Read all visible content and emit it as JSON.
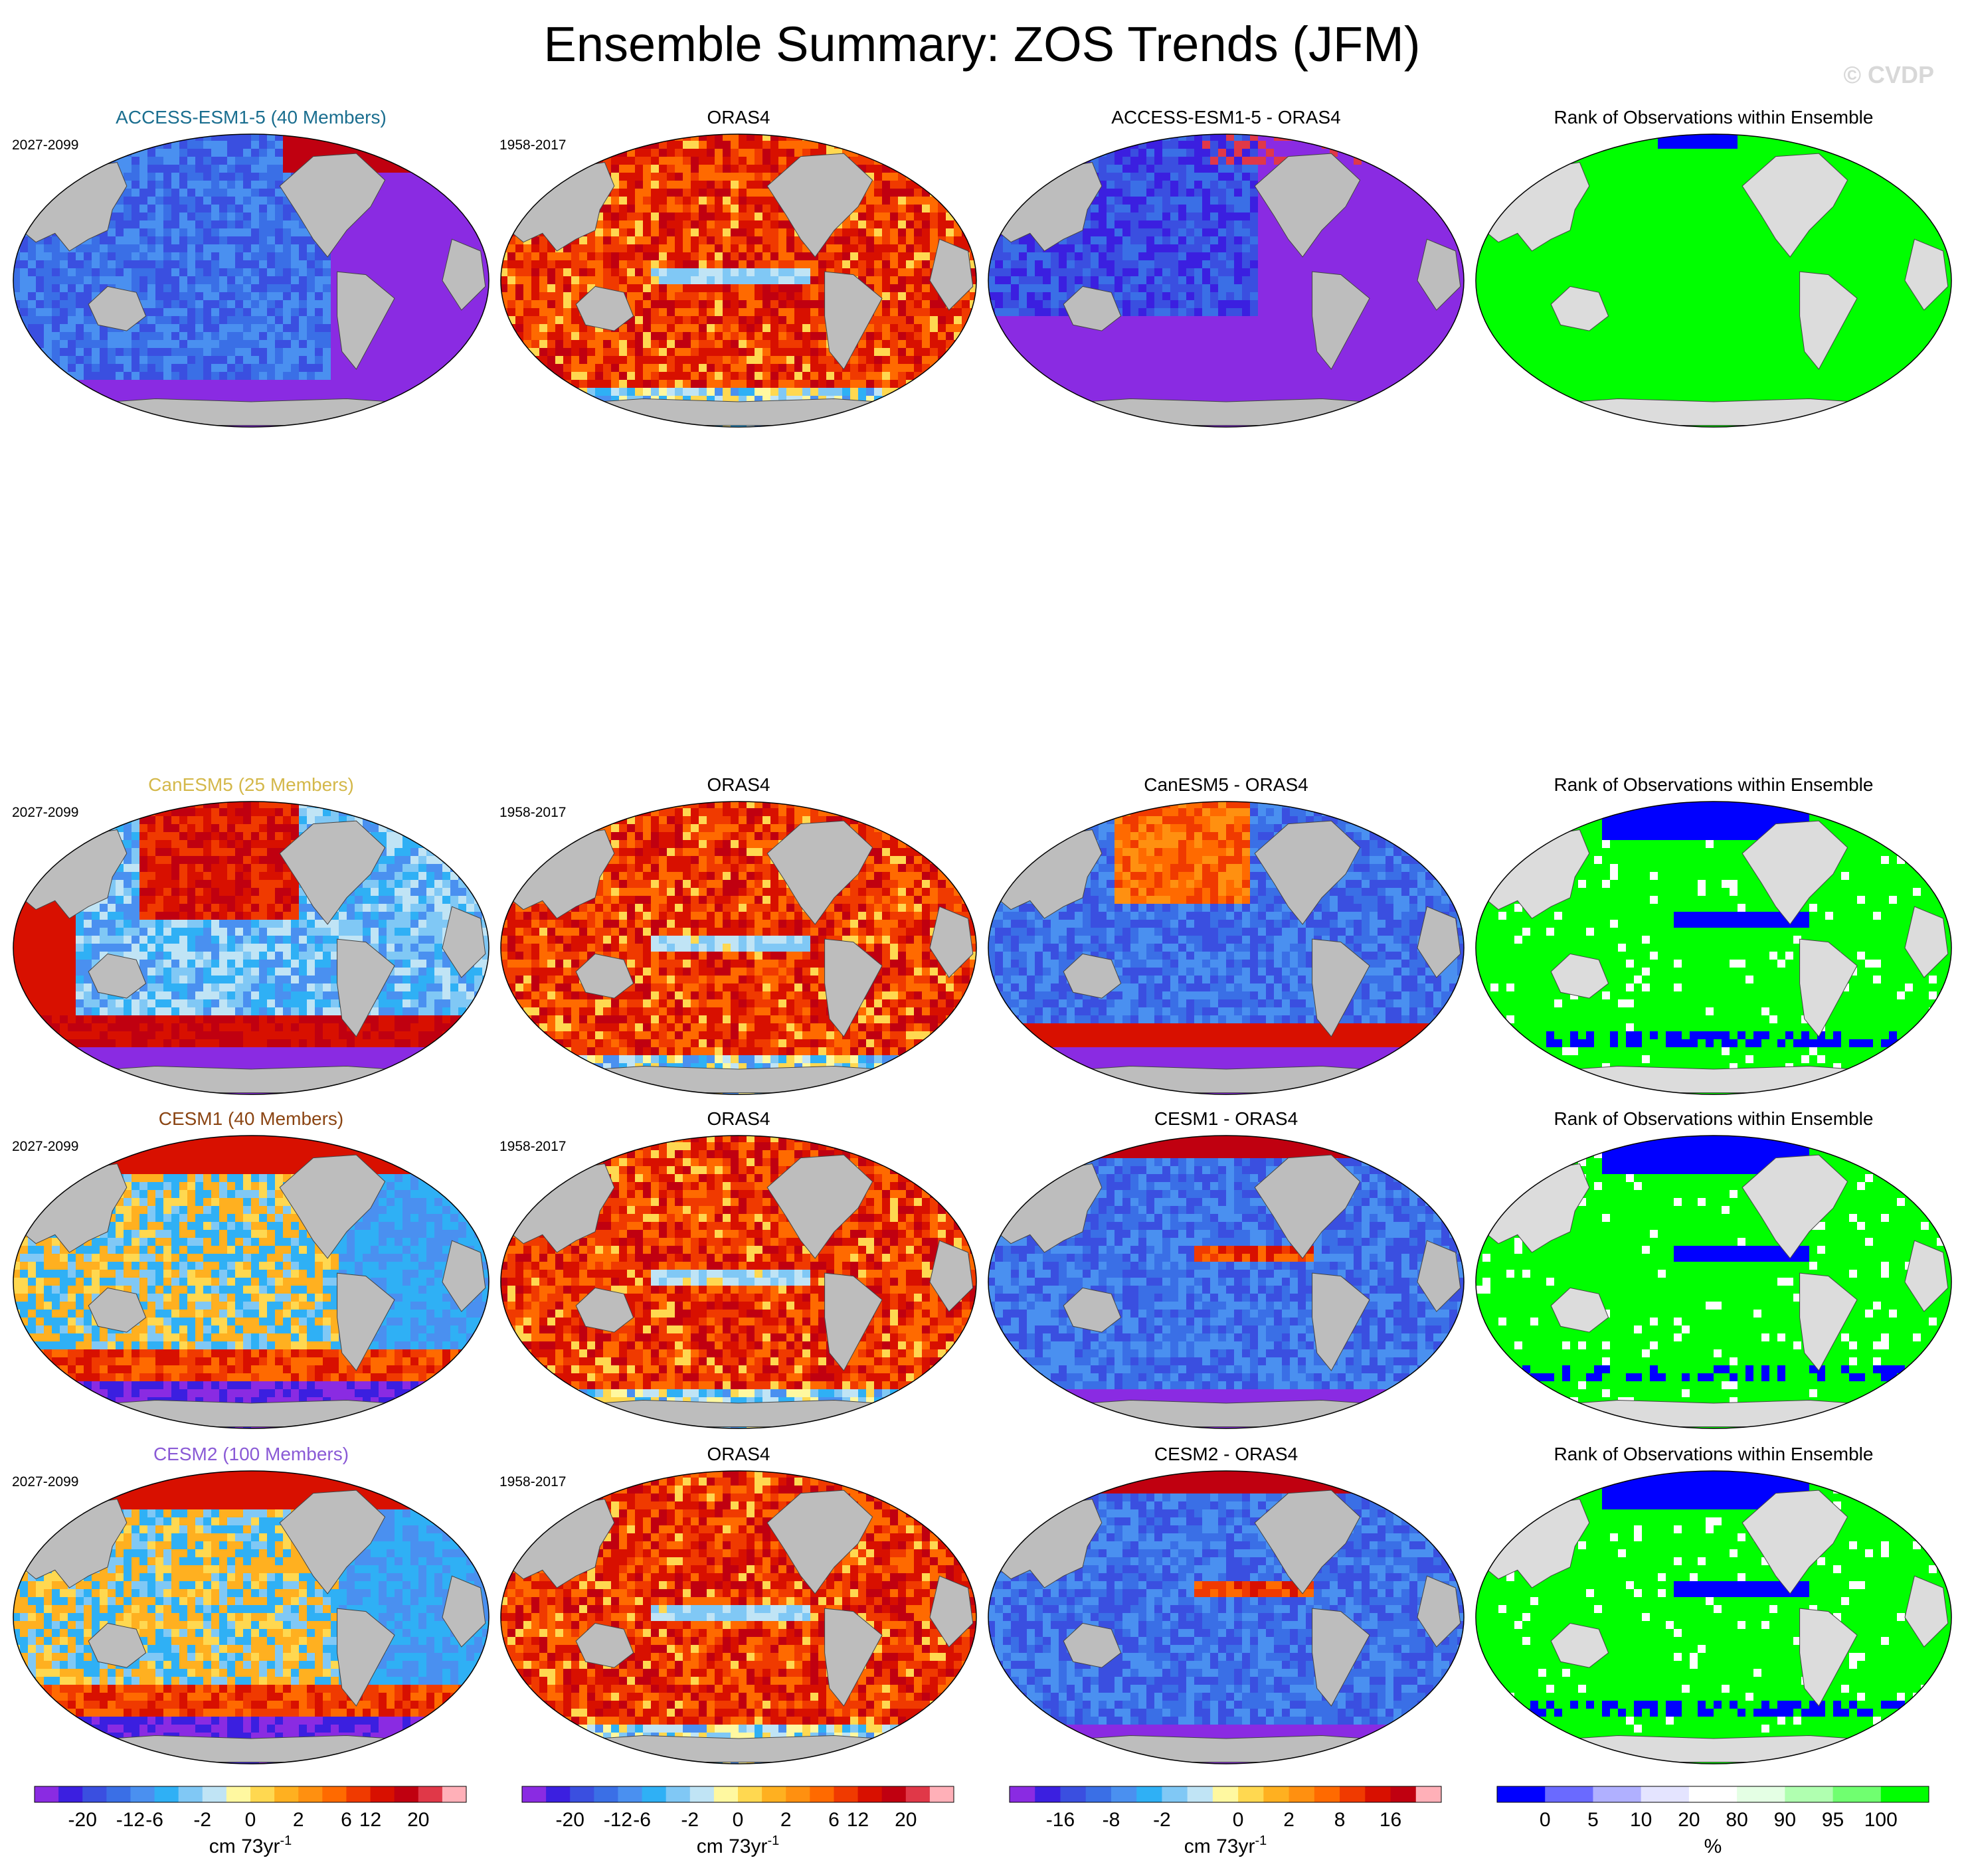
{
  "title": "Ensemble Summary: ZOS Trends (JFM)",
  "watermark": "© CVDP",
  "rows": [
    {
      "model_title": "ACCESS-ESM1-5 (40 Members)",
      "model_color": "#1a6e8f",
      "model_period": "2027-2099",
      "obs_title": "ORAS4",
      "obs_period": "1958-2017",
      "diff_title": "ACCESS-ESM1-5 - ORAS4",
      "rank_title": "Rank of Observations within Ensemble",
      "patterns": {
        "model": "uniform-negative",
        "obs": "positive",
        "diff": "strong-negative",
        "rank": "all-high"
      }
    },
    {
      "model_title": "CanESM5 (25 Members)",
      "model_color": "#d4b84a",
      "model_period": "2027-2099",
      "obs_title": "ORAS4",
      "obs_period": "1958-2017",
      "diff_title": "CanESM5 - ORAS4",
      "rank_title": "Rank of Observations within Ensemble",
      "patterns": {
        "model": "mixed",
        "obs": "positive",
        "diff": "mixed-negative",
        "rank": "mostly-high"
      }
    },
    {
      "model_title": "CESM1 (40 Members)",
      "model_color": "#8b4513",
      "model_period": "2027-2099",
      "obs_title": "ORAS4",
      "obs_period": "1958-2017",
      "diff_title": "CESM1 - ORAS4",
      "rank_title": "Rank of Observations within Ensemble",
      "patterns": {
        "model": "mixed-weak",
        "obs": "positive",
        "diff": "negative",
        "rank": "mostly-high"
      }
    },
    {
      "model_title": "CESM2 (100 Members)",
      "model_color": "#8a5ad6",
      "model_period": "2027-2099",
      "obs_title": "ORAS4",
      "obs_period": "1958-2017",
      "diff_title": "CESM2 - ORAS4",
      "rank_title": "Rank of Observations within Ensemble",
      "patterns": {
        "model": "mixed-weak",
        "obs": "positive",
        "diff": "negative",
        "rank": "mostly-high"
      }
    }
  ],
  "colorbars": [
    {
      "colors": [
        "#8a2be2",
        "#3b1fe0",
        "#3a4fe0",
        "#3a6fe6",
        "#4a90f0",
        "#2fb0f5",
        "#80c8f5",
        "#c0e4f5",
        "#fff8a0",
        "#ffd850",
        "#ffb020",
        "#ff9010",
        "#ff6a00",
        "#f03a00",
        "#d81000",
        "#c00010",
        "#e03848",
        "#ffb0b8"
      ],
      "labels": [
        "-20",
        "-12",
        "-6",
        "-2",
        "0",
        "2",
        "6",
        "12",
        "20"
      ],
      "title": "cm 73yr",
      "title_sup": "-1"
    },
    {
      "colors": [
        "#8a2be2",
        "#3b1fe0",
        "#3a4fe0",
        "#3a6fe6",
        "#4a90f0",
        "#2fb0f5",
        "#80c8f5",
        "#c0e4f5",
        "#fff8a0",
        "#ffd850",
        "#ffb020",
        "#ff9010",
        "#ff6a00",
        "#f03a00",
        "#d81000",
        "#c00010",
        "#e03848",
        "#ffb0b8"
      ],
      "labels": [
        "-20",
        "-12",
        "-6",
        "-2",
        "0",
        "2",
        "6",
        "12",
        "20"
      ],
      "title": "cm 73yr",
      "title_sup": "-1"
    },
    {
      "colors": [
        "#8a2be2",
        "#3b1fe0",
        "#3a4fe0",
        "#3a6fe6",
        "#4a90f0",
        "#2fb0f5",
        "#80c8f5",
        "#c0e4f5",
        "#fff8a0",
        "#ffd850",
        "#ffb020",
        "#ff9010",
        "#ff6a00",
        "#f03a00",
        "#d81000",
        "#c00010",
        "#ffb0b8"
      ],
      "labels": [
        "-16",
        "-8",
        "-2",
        "0",
        "2",
        "8",
        "16"
      ],
      "title": "cm 73yr",
      "title_sup": "-1"
    },
    {
      "colors": [
        "#0000ff",
        "#6a6aff",
        "#b0b0ff",
        "#e4e4ff",
        "#ffffff",
        "#e4ffe4",
        "#b0ffb0",
        "#70ff70",
        "#00ff00"
      ],
      "labels": [
        "0",
        "5",
        "10",
        "20",
        "80",
        "90",
        "95",
        "100"
      ],
      "title": "%",
      "title_sup": ""
    }
  ]
}
